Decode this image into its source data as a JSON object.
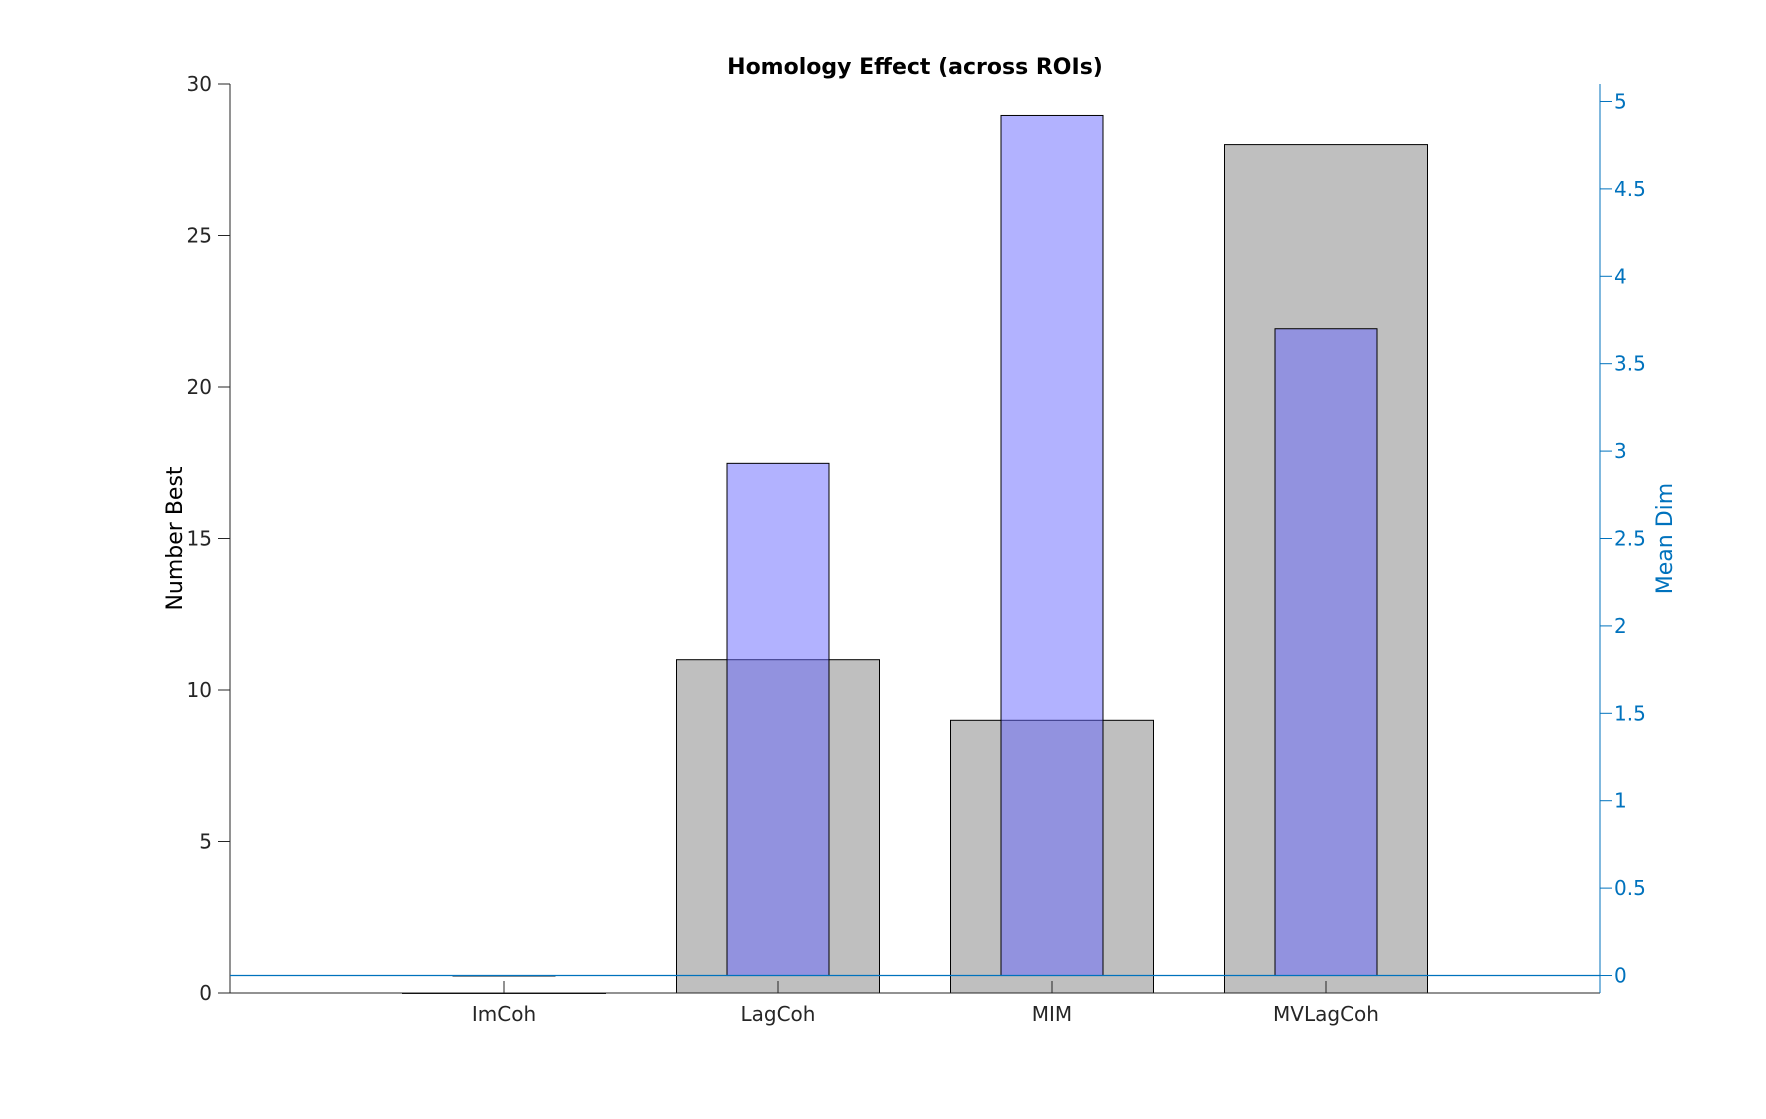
{
  "chart_data": {
    "type": "bar",
    "title": "Homology Effect (across ROIs)",
    "categories": [
      "ImCoh",
      "LagCoh",
      "MIM",
      "MVLagCoh"
    ],
    "xlim": [
      0,
      5
    ],
    "left_axis": {
      "label": "Number Best",
      "ylim": [
        0,
        30
      ],
      "ticks": [
        0,
        5,
        10,
        15,
        20,
        25,
        30
      ],
      "color": "#000000"
    },
    "right_axis": {
      "label": "Mean Dim",
      "ylim": [
        -0.1,
        5.1
      ],
      "ticks": [
        0,
        0.5,
        1,
        1.5,
        2,
        2.5,
        3,
        3.5,
        4,
        4.5,
        5
      ],
      "tick_labels": [
        "0",
        "0.5",
        "1",
        "1.5",
        "2",
        "2.5",
        "3",
        "3.5",
        "4",
        "4.5",
        "5"
      ],
      "color": "#0072BD"
    },
    "series": [
      {
        "axis": "left",
        "values": [
          0,
          11,
          9,
          28
        ],
        "color": "#BFBFBF"
      },
      {
        "axis": "right",
        "values": [
          0,
          2.93,
          4.92,
          3.7
        ],
        "color": "#6666FF",
        "opacity": 0.5
      }
    ],
    "baseline_right": 0,
    "grid": false
  }
}
